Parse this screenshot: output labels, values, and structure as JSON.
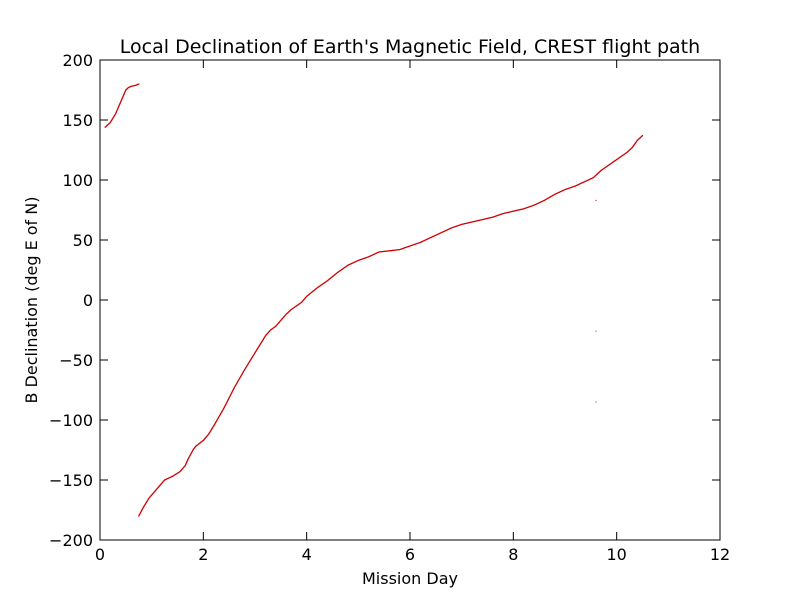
{
  "chart_data": {
    "type": "scatter",
    "title": "Local Declination of Earth's Magnetic Field, CREST flight path",
    "xlabel": "Mission Day",
    "ylabel": "B Declination (deg E of N)",
    "xlim": [
      0,
      12
    ],
    "ylim": [
      -200,
      200
    ],
    "x_ticks": [
      0,
      2,
      4,
      6,
      8,
      10,
      12
    ],
    "y_ticks": [
      -200,
      -150,
      -100,
      -50,
      0,
      50,
      100,
      150,
      200
    ],
    "x_tick_labels": [
      "0",
      "2",
      "4",
      "6",
      "8",
      "10",
      "12"
    ],
    "y_tick_labels": [
      "−200",
      "−150",
      "−100",
      "−50",
      "0",
      "50",
      "100",
      "150",
      "200"
    ],
    "grid": false,
    "marker_color": "#cc0000",
    "series": [
      {
        "segments": [
          {
            "x": [
              0.1,
              0.2,
              0.3,
              0.4,
              0.5,
              0.55,
              0.6,
              0.7,
              0.75
            ],
            "y": [
              144,
              148,
              155,
              165,
              175,
              177,
              178,
              179,
              180
            ]
          },
          {
            "x": [
              0.75,
              0.85,
              0.95,
              1.05,
              1.15,
              1.25,
              1.4,
              1.55,
              1.65,
              1.7,
              1.8,
              1.85,
              2.0,
              2.1,
              2.2,
              2.4,
              2.6,
              2.8,
              3.0,
              3.2,
              3.3,
              3.4,
              3.5,
              3.6,
              3.7,
              3.8,
              3.9,
              4.0,
              4.2,
              4.4,
              4.6,
              4.8,
              5.0,
              5.2,
              5.4,
              5.6,
              5.8,
              6.0,
              6.2,
              6.4,
              6.6,
              6.8,
              7.0,
              7.2,
              7.4,
              7.6,
              7.8,
              8.0,
              8.2,
              8.4,
              8.6,
              8.8,
              9.0,
              9.2,
              9.4,
              9.55,
              9.65,
              9.7,
              9.8,
              10.0,
              10.2,
              10.3,
              10.4,
              10.5
            ],
            "y": [
              -180,
              -172,
              -165,
              -160,
              -155,
              -150,
              -147,
              -143,
              -138,
              -133,
              -125,
              -122,
              -117,
              -112,
              -105,
              -90,
              -73,
              -58,
              -44,
              -30,
              -25,
              -22,
              -17,
              -12,
              -8,
              -5,
              -2,
              3,
              10,
              16,
              23,
              29,
              33,
              36,
              40,
              41,
              42,
              45,
              48,
              52,
              56,
              60,
              63,
              65,
              67,
              69,
              72,
              74,
              76,
              79,
              83,
              88,
              92,
              95,
              99,
              102,
              106,
              108,
              111,
              117,
              123,
              127,
              133,
              137
            ]
          }
        ]
      },
      {
        "points": {
          "x": [
            9.6,
            9.6,
            9.6
          ],
          "y": [
            83,
            -26,
            -85
          ]
        }
      }
    ]
  }
}
